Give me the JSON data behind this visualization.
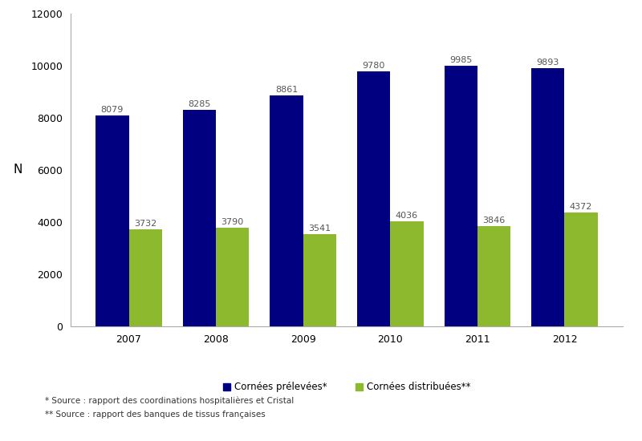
{
  "years": [
    "2007",
    "2008",
    "2009",
    "2010",
    "2011",
    "2012"
  ],
  "prelevees": [
    8079,
    8285,
    8861,
    9780,
    9985,
    9893
  ],
  "distribuees": [
    3732,
    3790,
    3541,
    4036,
    3846,
    4372
  ],
  "color_prelevees": "#000080",
  "color_distribuees": "#8DB92E",
  "ylabel": "N",
  "ylim": [
    0,
    12000
  ],
  "yticks": [
    0,
    2000,
    4000,
    6000,
    8000,
    10000,
    12000
  ],
  "legend_label_1": "Cornées prélevées*",
  "legend_label_2": "Cornées distribuées**",
  "footnote_1": "* Source : rapport des coordinations hospitalières et Cristal",
  "footnote_2": "** Source : rapport des banques de tissus françaises",
  "bar_width": 0.38,
  "label_fontsize": 8,
  "tick_fontsize": 9,
  "legend_fontsize": 8.5,
  "footnote_fontsize": 7.5,
  "label_color": "#555555",
  "background_color": "#ffffff",
  "spine_color": "#aaaaaa"
}
